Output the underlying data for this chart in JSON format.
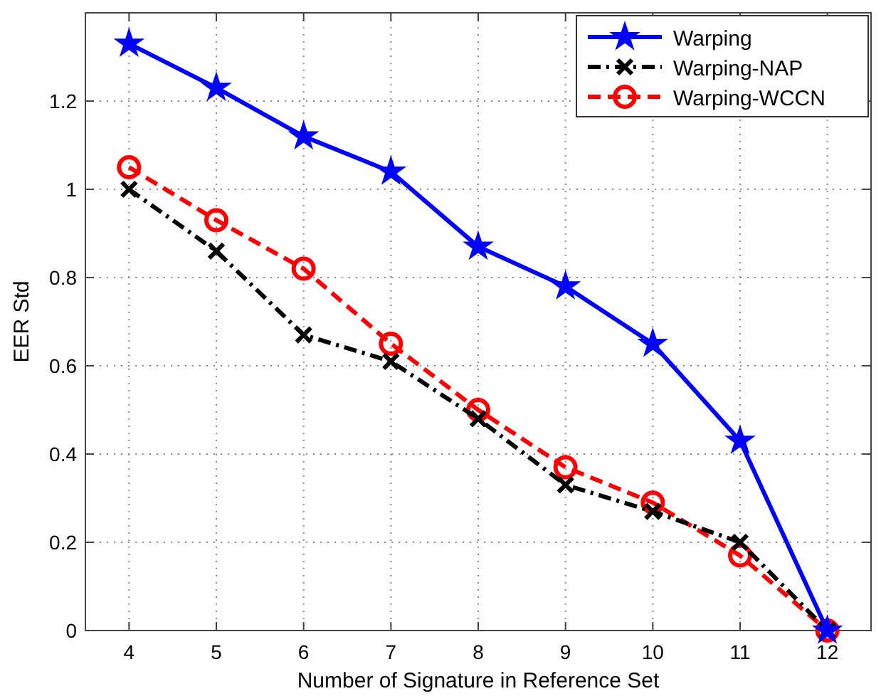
{
  "chart_data": {
    "type": "line",
    "xlabel": "Number of Signature in Reference Set",
    "ylabel": "EER Std",
    "x": [
      4,
      5,
      6,
      7,
      8,
      9,
      10,
      11,
      12
    ],
    "xlim": [
      3.5,
      12.5
    ],
    "xticks": [
      4,
      5,
      6,
      7,
      8,
      9,
      10,
      11,
      12
    ],
    "ylim": [
      0,
      1.4
    ],
    "yticks": [
      0,
      0.2,
      0.4,
      0.6,
      0.8,
      1,
      1.2
    ],
    "grid": true,
    "legend": "top right",
    "series": [
      {
        "name": "Warping",
        "color": "#0000ff",
        "marker": "star",
        "line_style": "solid",
        "values": [
          1.33,
          1.23,
          1.12,
          1.04,
          0.87,
          0.78,
          0.65,
          0.43,
          0
        ]
      },
      {
        "name": "Warping-NAP",
        "color": "#000000",
        "marker": "cross",
        "line_style": "dashdot",
        "values": [
          1.0,
          0.86,
          0.67,
          0.61,
          0.48,
          0.33,
          0.27,
          0.2,
          0
        ]
      },
      {
        "name": "Warping-WCCN",
        "color": "#ff0000",
        "marker": "circle",
        "line_style": "dashed",
        "values": [
          1.05,
          0.93,
          0.82,
          0.65,
          0.5,
          0.37,
          0.29,
          0.17,
          0
        ]
      }
    ]
  }
}
